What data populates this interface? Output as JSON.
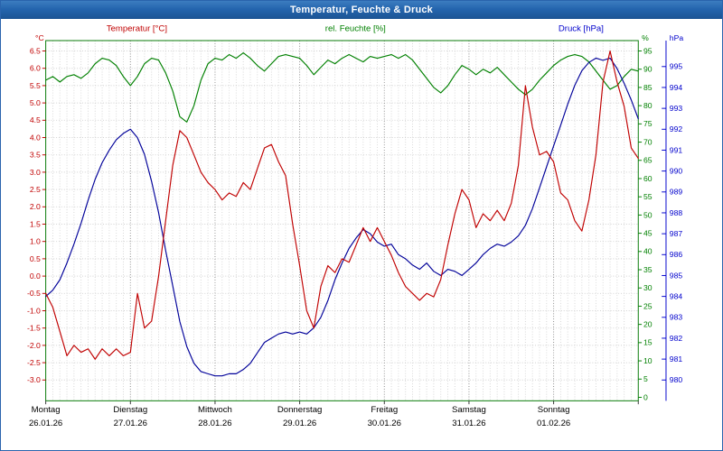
{
  "window": {
    "title": "Temperatur, Feuchte & Druck"
  },
  "header": {
    "temp_label": "Temperatur [°C]",
    "hum_label": "rel. Feuchte [%]",
    "pres_label": "Druck [hPa]"
  },
  "style": {
    "titlebar_color": "#2465ae",
    "frame_color": "#007700",
    "grid_minor_color": "#d6d6d6",
    "grid_day_color": "#8a8a8a",
    "grid_h_color": "#cfcfcf",
    "temp_color": "#c00000",
    "hum_color": "#008000",
    "pres_line_color": "#000099",
    "pres_label_color": "#0000cc"
  },
  "chart_data": {
    "type": "line",
    "title": "Temperatur, Feuchte & Druck",
    "x": {
      "unit": "hours",
      "step": 2,
      "total_hours": 168,
      "days": [
        {
          "name": "Montag",
          "date": "26.01.26"
        },
        {
          "name": "Dienstag",
          "date": "27.01.26"
        },
        {
          "name": "Mittwoch",
          "date": "28.01.26"
        },
        {
          "name": "Donnerstag",
          "date": "29.01.26"
        },
        {
          "name": "Freitag",
          "date": "30.01.26"
        },
        {
          "name": "Samstag",
          "date": "31.01.26"
        },
        {
          "name": "Sonntag",
          "date": "01.02.26"
        }
      ]
    },
    "axes": {
      "temp": {
        "label": "Temperatur",
        "unit": "°C",
        "min": -3.0,
        "max": 6.5,
        "step": 0.5,
        "decimals": 1,
        "color": "#c00000"
      },
      "hum": {
        "label": "rel. Feuchte",
        "unit": "%",
        "min": 0,
        "max": 95,
        "step": 5,
        "decimals": 0,
        "color": "#008000"
      },
      "pres": {
        "label": "Druck",
        "unit": "hPa",
        "min": 980,
        "max": 995,
        "step": 1,
        "decimals": 0,
        "color": "#0000cc"
      }
    },
    "series": [
      {
        "name": "Temperatur",
        "axis": "temp",
        "unit": "°C",
        "color": "#c00000",
        "values": [
          -0.5,
          -0.9,
          -1.6,
          -2.3,
          -2.0,
          -2.2,
          -2.1,
          -2.4,
          -2.1,
          -2.3,
          -2.1,
          -2.3,
          -2.2,
          -0.5,
          -1.5,
          -1.3,
          0.0,
          1.6,
          3.2,
          4.2,
          4.0,
          3.5,
          3.0,
          2.7,
          2.5,
          2.2,
          2.4,
          2.3,
          2.7,
          2.5,
          3.1,
          3.7,
          3.8,
          3.3,
          2.9,
          1.5,
          0.3,
          -1.0,
          -1.5,
          -0.3,
          0.3,
          0.1,
          0.5,
          0.4,
          0.9,
          1.4,
          1.0,
          1.4,
          1.0,
          0.6,
          0.1,
          -0.3,
          -0.5,
          -0.7,
          -0.5,
          -0.6,
          -0.1,
          0.9,
          1.8,
          2.5,
          2.2,
          1.4,
          1.8,
          1.6,
          1.9,
          1.6,
          2.1,
          3.2,
          5.5,
          4.3,
          3.5,
          3.6,
          3.3,
          2.4,
          2.2,
          1.6,
          1.3,
          2.2,
          3.5,
          5.6,
          6.5,
          5.6,
          4.9,
          3.7,
          3.4
        ]
      },
      {
        "name": "rel. Feuchte",
        "axis": "hum",
        "unit": "%",
        "color": "#008000",
        "values": [
          87,
          88,
          86.5,
          88,
          88.5,
          87.5,
          89,
          91.5,
          93,
          92.5,
          91,
          88,
          85.5,
          88,
          91.5,
          93,
          92.5,
          89,
          84,
          77,
          75.5,
          80,
          87,
          91.5,
          93,
          92.5,
          94,
          93,
          94.5,
          93,
          91,
          89.5,
          91.5,
          93.5,
          94,
          93.5,
          93,
          91,
          88.5,
          90.5,
          92.5,
          91.5,
          93,
          94,
          93,
          92,
          93.5,
          93,
          93.5,
          94,
          93,
          94,
          92.5,
          90,
          87.5,
          85,
          83.5,
          85.5,
          88.5,
          91,
          90,
          88.5,
          90,
          89,
          90.5,
          88.5,
          86.5,
          84.5,
          83,
          84.5,
          87,
          89,
          91,
          92.5,
          93.5,
          94,
          93.5,
          92,
          89.5,
          87,
          84.5,
          85.5,
          88,
          90,
          89.5
        ]
      },
      {
        "name": "Druck",
        "axis": "pres",
        "unit": "hPa",
        "color": "#000099",
        "values": [
          984.0,
          984.3,
          984.8,
          985.6,
          986.5,
          987.5,
          988.6,
          989.6,
          990.4,
          991.0,
          991.5,
          991.8,
          992.0,
          991.6,
          990.8,
          989.5,
          988.0,
          986.2,
          984.5,
          982.8,
          981.6,
          980.8,
          980.4,
          980.3,
          980.2,
          980.2,
          980.3,
          980.3,
          980.5,
          980.8,
          981.3,
          981.8,
          982.0,
          982.2,
          982.3,
          982.2,
          982.3,
          982.2,
          982.5,
          983.0,
          983.8,
          984.8,
          985.6,
          986.3,
          986.8,
          987.2,
          987.0,
          986.6,
          986.4,
          986.5,
          986.0,
          985.8,
          985.5,
          985.3,
          985.6,
          985.2,
          985.0,
          985.3,
          985.2,
          985.0,
          985.3,
          985.6,
          986.0,
          986.3,
          986.5,
          986.4,
          986.6,
          986.9,
          987.4,
          988.2,
          989.2,
          990.2,
          991.2,
          992.2,
          993.2,
          994.1,
          994.8,
          995.2,
          995.4,
          995.3,
          995.4,
          994.9,
          994.2,
          993.4,
          992.5
        ]
      }
    ]
  }
}
